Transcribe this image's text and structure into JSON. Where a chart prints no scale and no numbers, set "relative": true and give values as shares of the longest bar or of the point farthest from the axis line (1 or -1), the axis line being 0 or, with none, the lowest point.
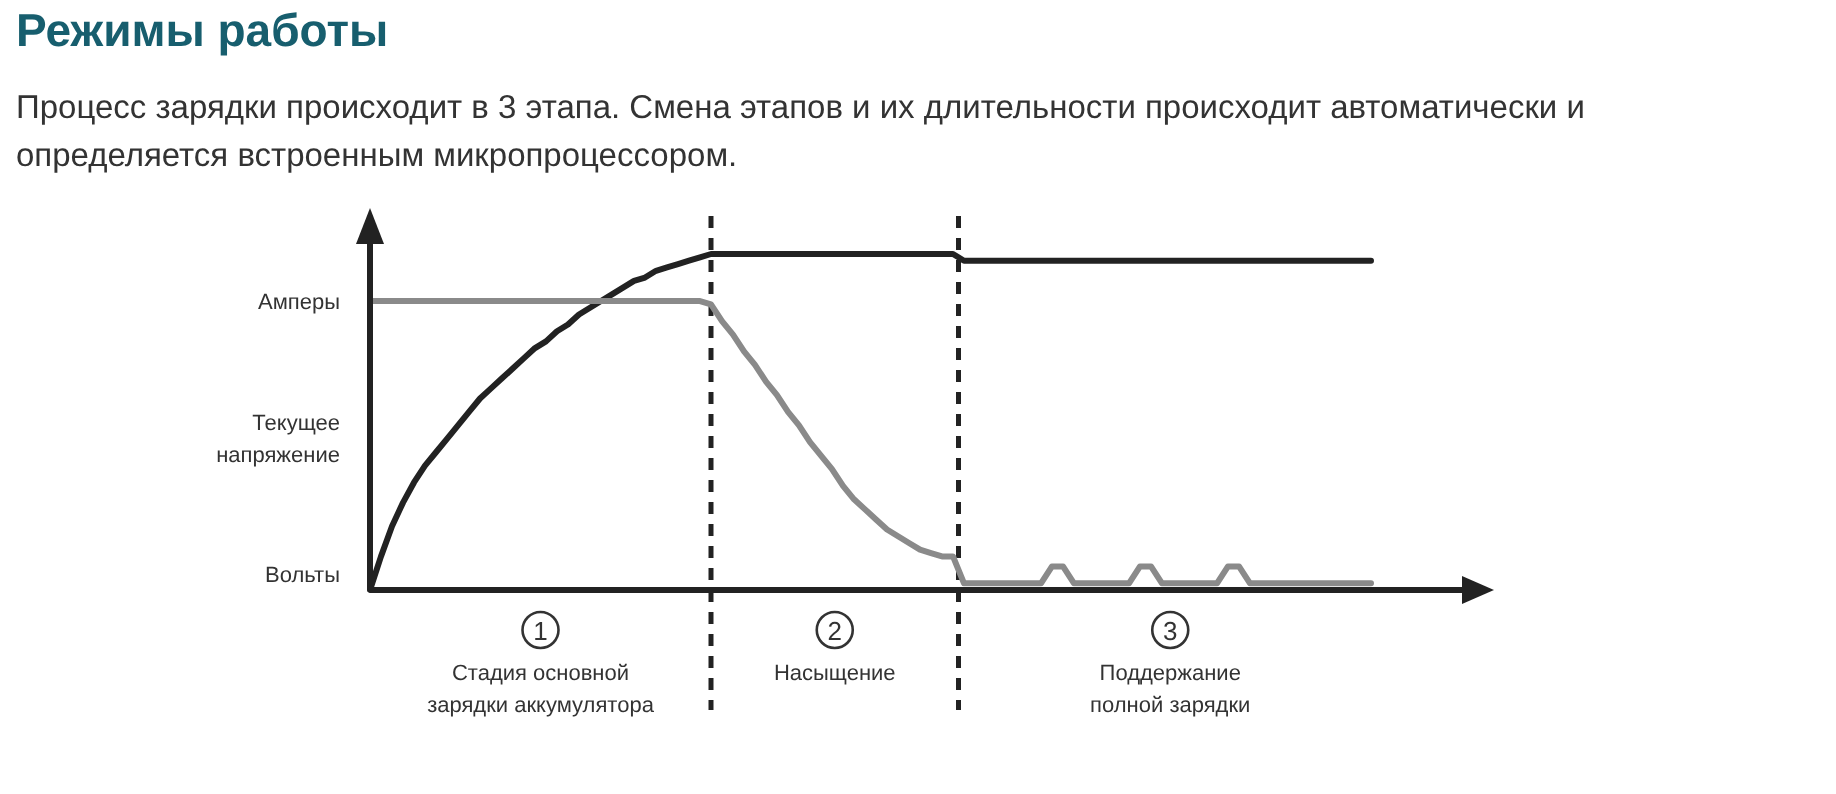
{
  "chart_data": {
    "type": "line",
    "title": "Режимы работы",
    "subtitle": "Процесс зарядки происходит в 3 этапа. Смена этапов и их длительности происходит автоматически и определяется встроенным микропроцессором.",
    "relative": true,
    "marker": "none",
    "line_style": "solid",
    "categories": [
      null,
      null,
      null,
      null,
      null,
      null,
      null,
      null,
      null,
      null,
      null,
      null,
      null,
      null,
      null,
      null,
      null,
      null,
      null,
      null,
      null,
      null,
      null,
      null,
      null,
      null,
      null,
      null,
      null,
      null,
      null,
      null,
      null,
      null,
      null,
      null,
      null,
      null,
      null,
      null,
      null,
      null,
      null,
      null,
      null,
      null,
      null,
      null,
      null,
      null,
      null,
      null,
      null,
      null,
      null,
      null,
      null,
      null,
      null,
      null,
      null,
      null,
      null,
      null,
      null,
      null,
      null,
      null,
      null,
      null,
      null,
      null,
      null,
      null,
      null,
      null,
      null,
      null,
      null,
      null,
      null,
      null,
      null,
      null,
      null,
      null,
      null,
      null,
      null,
      null,
      null,
      null
    ],
    "series": [
      {
        "color": "#222222",
        "values": [
          0,
          0.1,
          0.19,
          0.26,
          0.32,
          0.37,
          0.41,
          0.45,
          0.49,
          0.53,
          0.57,
          0.6,
          0.63,
          0.66,
          0.69,
          0.72,
          0.74,
          0.77,
          0.79,
          0.82,
          0.84,
          0.86,
          0.88,
          0.9,
          0.92,
          0.93,
          0.95,
          0.96,
          0.97,
          0.98,
          0.99,
          1,
          1,
          1,
          1,
          1,
          1,
          1,
          1,
          1,
          1,
          1,
          1,
          1,
          1,
          1,
          1,
          1,
          1,
          1,
          1,
          1,
          1,
          1,
          0.98,
          0.98,
          0.98,
          0.98,
          0.98,
          0.98,
          0.98,
          0.98,
          0.98,
          0.98,
          0.98,
          0.98,
          0.98,
          0.98,
          0.98,
          0.98,
          0.98,
          0.98,
          0.98,
          0.98,
          0.98,
          0.98,
          0.98,
          0.98,
          0.98,
          0.98,
          0.98,
          0.98,
          0.98,
          0.98,
          0.98,
          0.98,
          0.98,
          0.98,
          0.98,
          0.98,
          0.98,
          0.98
        ]
      },
      {
        "color": "#8a8a8a",
        "values": [
          0.86,
          0.86,
          0.86,
          0.86,
          0.86,
          0.86,
          0.86,
          0.86,
          0.86,
          0.86,
          0.86,
          0.86,
          0.86,
          0.86,
          0.86,
          0.86,
          0.86,
          0.86,
          0.86,
          0.86,
          0.86,
          0.86,
          0.86,
          0.86,
          0.86,
          0.86,
          0.86,
          0.86,
          0.86,
          0.86,
          0.86,
          0.85,
          0.8,
          0.76,
          0.71,
          0.67,
          0.62,
          0.58,
          0.53,
          0.49,
          0.44,
          0.4,
          0.36,
          0.31,
          0.27,
          0.24,
          0.21,
          0.18,
          0.16,
          0.14,
          0.12,
          0.11,
          0.1,
          0.1,
          0.02,
          0.02,
          0.02,
          0.02,
          0.02,
          0.02,
          0.02,
          0.02,
          0.07,
          0.07,
          0.02,
          0.02,
          0.02,
          0.02,
          0.02,
          0.02,
          0.07,
          0.07,
          0.02,
          0.02,
          0.02,
          0.02,
          0.02,
          0.02,
          0.07,
          0.07,
          0.02,
          0.02,
          0.02,
          0.02,
          0.02,
          0.02,
          0.02,
          0.02,
          0.02,
          0.02,
          0.02,
          0.02
        ]
      }
    ],
    "annotations": [
      "Амперы",
      "Текущее напряжение",
      "Вольты",
      "1",
      "Стадия основной зарядки аккумулятора",
      "2",
      "Насыщение",
      "3",
      "Поддержание полной зарядки"
    ]
  }
}
